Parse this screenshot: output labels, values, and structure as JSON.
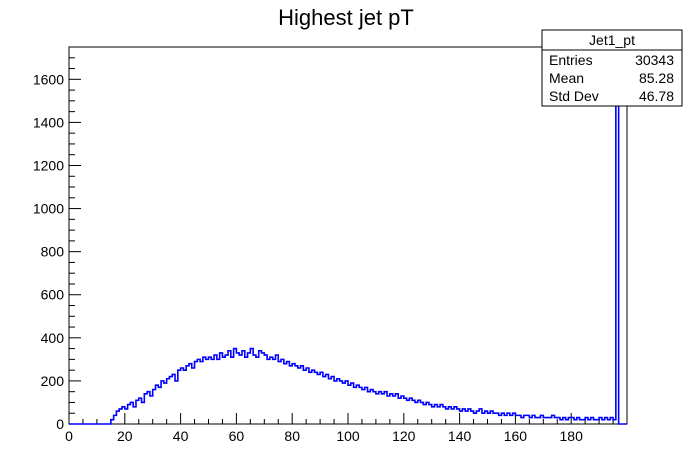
{
  "chart_data": {
    "type": "histogram",
    "title": "Highest jet pT",
    "xlabel": "",
    "ylabel": "",
    "xlim": [
      0,
      200
    ],
    "ylim": [
      0,
      1750
    ],
    "x_ticks": [
      0,
      20,
      40,
      60,
      80,
      100,
      120,
      140,
      160,
      180
    ],
    "y_ticks": [
      0,
      200,
      400,
      600,
      800,
      1000,
      1200,
      1400,
      1600
    ],
    "grid": false,
    "line_color": "#0000ff",
    "bin_width": 1,
    "bin_start": 0,
    "values": [
      0,
      0,
      0,
      0,
      0,
      0,
      0,
      0,
      0,
      0,
      0,
      0,
      0,
      0,
      0,
      20,
      40,
      60,
      70,
      80,
      70,
      90,
      100,
      80,
      110,
      120,
      100,
      140,
      150,
      130,
      160,
      180,
      170,
      200,
      190,
      210,
      220,
      230,
      200,
      250,
      260,
      250,
      270,
      280,
      260,
      290,
      300,
      290,
      310,
      300,
      310,
      300,
      320,
      300,
      330,
      310,
      320,
      340,
      310,
      350,
      330,
      320,
      340,
      310,
      330,
      350,
      320,
      310,
      340,
      330,
      320,
      300,
      310,
      300,
      320,
      290,
      300,
      280,
      290,
      270,
      280,
      270,
      260,
      270,
      250,
      260,
      240,
      250,
      240,
      230,
      240,
      220,
      230,
      210,
      220,
      200,
      210,
      200,
      190,
      200,
      180,
      190,
      170,
      180,
      170,
      160,
      170,
      150,
      160,
      150,
      140,
      150,
      140,
      150,
      130,
      140,
      130,
      140,
      120,
      130,
      120,
      110,
      120,
      110,
      100,
      110,
      100,
      90,
      100,
      90,
      80,
      90,
      80,
      90,
      80,
      70,
      80,
      70,
      80,
      70,
      60,
      70,
      60,
      70,
      60,
      50,
      60,
      70,
      50,
      60,
      50,
      60,
      50,
      50,
      40,
      50,
      40,
      50,
      40,
      50,
      40,
      40,
      30,
      40,
      40,
      30,
      40,
      30,
      30,
      40,
      30,
      30,
      30,
      40,
      30,
      30,
      20,
      30,
      20,
      30,
      30,
      20,
      30,
      20,
      20,
      30,
      20,
      30,
      20,
      20,
      30,
      20,
      30,
      20,
      30,
      20,
      1600,
      0,
      0,
      0
    ],
    "stats_box": {
      "name": "Jet1_pt",
      "rows": [
        {
          "label": "Entries",
          "value": "30343"
        },
        {
          "label": "Mean",
          "value": "85.28"
        },
        {
          "label": "Std Dev",
          "value": "46.78"
        }
      ]
    }
  }
}
